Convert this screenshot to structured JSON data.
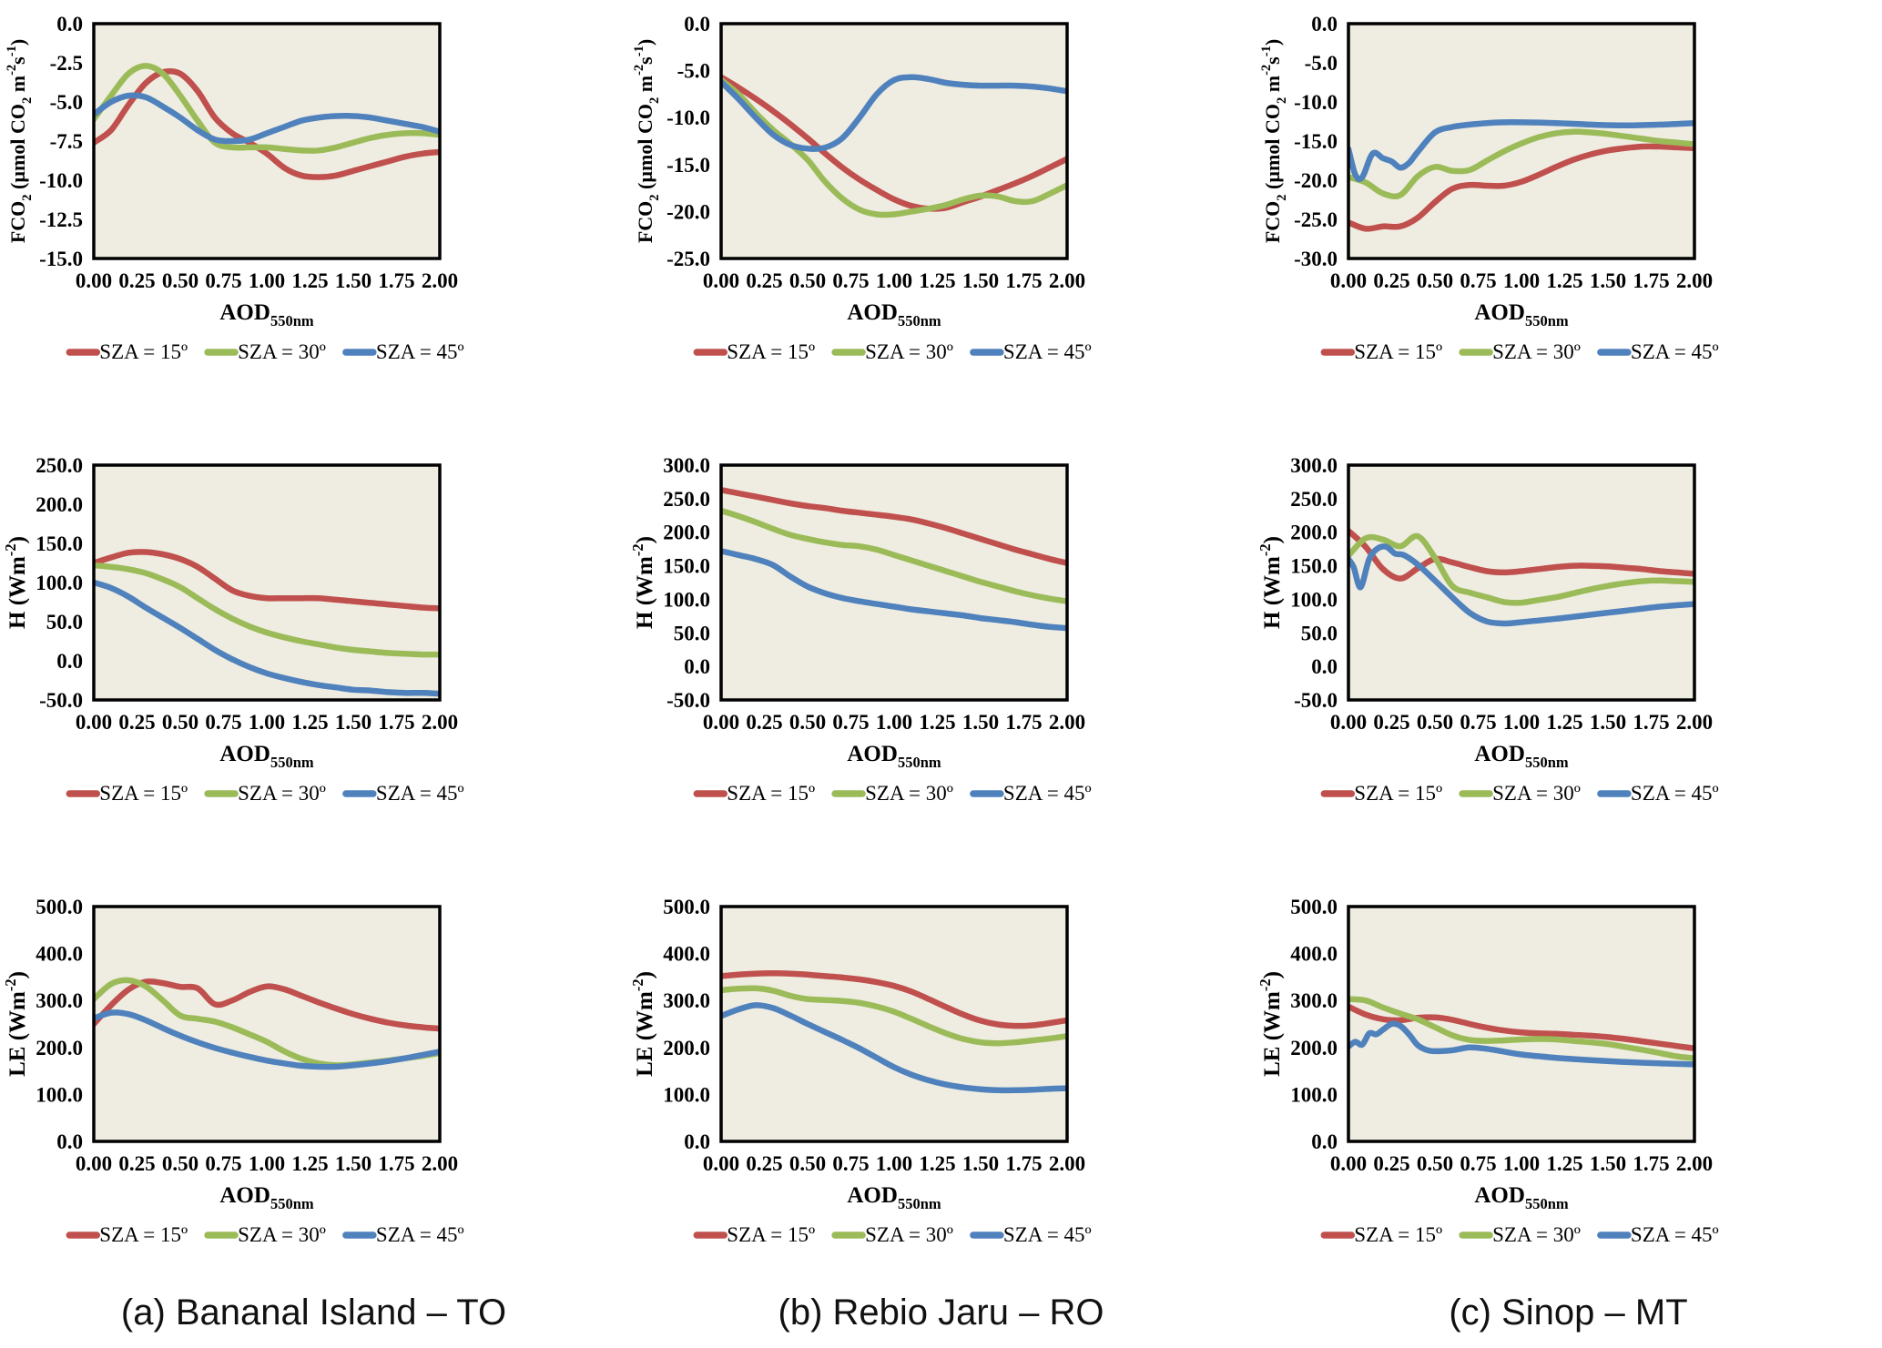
{
  "figure": {
    "background": "#ffffff",
    "plot_background": "#efede1",
    "axis_color": "#000000",
    "series_palette": {
      "sza15": "#c0504d",
      "sza30": "#9bbb59",
      "sza45": "#4f81bd"
    }
  },
  "legend": {
    "items": [
      {
        "label": "SZA = 15º",
        "color": "#c0504d"
      },
      {
        "label": "SZA = 30º",
        "color": "#9bbb59"
      },
      {
        "label": "SZA = 45º",
        "color": "#4f81bd"
      }
    ]
  },
  "captions": [
    "(a) Bananal Island – TO",
    "(b) Rebio Jaru – RO",
    "(c) Sinop – MT"
  ],
  "x_axis": {
    "title_segments": [
      [
        "AOD"
      ],
      [
        "550nm",
        "sub"
      ]
    ],
    "tick_labels": [
      "0.00",
      "0.25",
      "0.50",
      "0.75",
      "1.00",
      "1.25",
      "1.50",
      "1.75",
      "2.00"
    ],
    "range": [
      0,
      2
    ]
  },
  "x_values": [
    0,
    0.1,
    0.2,
    0.3,
    0.4,
    0.5,
    0.6,
    0.7,
    0.8,
    0.9,
    1.0,
    1.1,
    1.2,
    1.3,
    1.4,
    1.5,
    1.6,
    1.7,
    1.8,
    1.9,
    2.0
  ],
  "chart_data": [
    {
      "id": "fco2-bananal",
      "type": "line",
      "ylabel_segments": [
        [
          "FCO"
        ],
        [
          "2",
          "sub"
        ],
        [
          " (µmol CO"
        ],
        [
          "2",
          "sub"
        ],
        [
          " m"
        ],
        [
          "-2",
          "sup"
        ],
        [
          "s"
        ],
        [
          "-1",
          "sup"
        ],
        [
          ")"
        ]
      ],
      "ylim": [
        -15,
        0
      ],
      "ytick_step": 2.5,
      "grid": false,
      "legend_position": "bottom",
      "series": [
        {
          "name": "SZA = 15º",
          "color": "#c0504d",
          "values": [
            -7.6,
            -6.8,
            -5.2,
            -3.8,
            -3.1,
            -3.2,
            -4.3,
            -6.0,
            -7.0,
            -7.6,
            -8.3,
            -9.2,
            -9.7,
            -9.8,
            -9.7,
            -9.4,
            -9.1,
            -8.8,
            -8.5,
            -8.3,
            -8.2
          ]
        },
        {
          "name": "SZA = 30º",
          "color": "#9bbb59",
          "values": [
            -6.1,
            -4.6,
            -3.2,
            -2.7,
            -3.2,
            -4.6,
            -6.2,
            -7.6,
            -7.9,
            -7.9,
            -7.9,
            -8.0,
            -8.1,
            -8.1,
            -7.9,
            -7.6,
            -7.3,
            -7.1,
            -7.0,
            -7.0,
            -7.1
          ]
        },
        {
          "name": "SZA = 45º",
          "color": "#4f81bd",
          "values": [
            -5.8,
            -5.0,
            -4.6,
            -4.7,
            -5.3,
            -6.0,
            -6.8,
            -7.4,
            -7.5,
            -7.4,
            -7.0,
            -6.6,
            -6.2,
            -6.0,
            -5.9,
            -5.9,
            -6.0,
            -6.2,
            -6.4,
            -6.6,
            -6.9
          ]
        }
      ]
    },
    {
      "id": "fco2-rebio",
      "type": "line",
      "ylabel_segments": [
        [
          "FCO"
        ],
        [
          "2",
          "sub"
        ],
        [
          " (µmol CO"
        ],
        [
          "2",
          "sub"
        ],
        [
          " m"
        ],
        [
          "-2",
          "sup"
        ],
        [
          "s"
        ],
        [
          "-1",
          "sup"
        ],
        [
          ")"
        ]
      ],
      "ylim": [
        -25,
        0
      ],
      "ytick_step": 5,
      "grid": false,
      "legend_position": "bottom",
      "series": [
        {
          "name": "SZA = 15º",
          "color": "#c0504d",
          "values": [
            -5.7,
            -6.8,
            -8.0,
            -9.3,
            -10.7,
            -12.2,
            -13.8,
            -15.3,
            -16.6,
            -17.7,
            -18.7,
            -19.4,
            -19.7,
            -19.6,
            -19.0,
            -18.4,
            -17.7,
            -17.0,
            -16.2,
            -15.3,
            -14.4
          ]
        },
        {
          "name": "SZA = 30º",
          "color": "#9bbb59",
          "values": [
            -6.0,
            -7.5,
            -9.5,
            -11.3,
            -12.8,
            -14.5,
            -16.8,
            -18.6,
            -19.8,
            -20.3,
            -20.3,
            -20.0,
            -19.7,
            -19.3,
            -18.7,
            -18.3,
            -18.4,
            -18.9,
            -18.9,
            -18.1,
            -17.2
          ]
        },
        {
          "name": "SZA = 45º",
          "color": "#4f81bd",
          "values": [
            -6.2,
            -8.0,
            -10.0,
            -11.8,
            -12.9,
            -13.3,
            -13.2,
            -12.2,
            -10.0,
            -7.5,
            -6.0,
            -5.7,
            -5.9,
            -6.3,
            -6.5,
            -6.6,
            -6.6,
            -6.6,
            -6.7,
            -6.9,
            -7.2
          ]
        }
      ]
    },
    {
      "id": "fco2-sinop",
      "type": "line",
      "ylabel_segments": [
        [
          "FCO"
        ],
        [
          "2",
          "sub"
        ],
        [
          " (µmol CO"
        ],
        [
          "2",
          "sub"
        ],
        [
          " m"
        ],
        [
          "-2",
          "sup"
        ],
        [
          "s"
        ],
        [
          "-1",
          "sup"
        ],
        [
          ")"
        ]
      ],
      "ylim": [
        -30,
        0
      ],
      "ytick_step": 5,
      "grid": false,
      "legend_position": "bottom",
      "series": [
        {
          "name": "SZA = 15º",
          "color": "#c0504d",
          "values": [
            -25.4,
            -26.2,
            -25.9,
            -25.9,
            -24.8,
            -22.8,
            -21.1,
            -20.6,
            -20.7,
            -20.7,
            -20.2,
            -19.3,
            -18.3,
            -17.4,
            -16.7,
            -16.2,
            -15.9,
            -15.7,
            -15.7,
            -15.8,
            -15.9
          ]
        },
        {
          "name": "SZA = 30º",
          "color": "#9bbb59",
          "values": [
            -19.6,
            -20.3,
            -21.7,
            -21.9,
            -19.5,
            -18.3,
            -18.8,
            -18.7,
            -17.5,
            -16.3,
            -15.3,
            -14.5,
            -14.0,
            -13.8,
            -13.9,
            -14.1,
            -14.4,
            -14.7,
            -15.0,
            -15.2,
            -15.4
          ]
        },
        {
          "name": "SZA = 45º",
          "color": "#4f81bd",
          "x": [
            0,
            0.04,
            0.08,
            0.14,
            0.2,
            0.25,
            0.3,
            0.35,
            0.4,
            0.5,
            0.6,
            0.7,
            0.8,
            0.9,
            1.0,
            1.2,
            1.4,
            1.6,
            1.8,
            2.0
          ],
          "values": [
            -16.0,
            -19.3,
            -19.6,
            -16.6,
            -17.2,
            -17.6,
            -18.4,
            -17.8,
            -16.4,
            -13.9,
            -13.2,
            -12.9,
            -12.7,
            -12.6,
            -12.6,
            -12.7,
            -12.9,
            -13.0,
            -12.9,
            -12.7
          ]
        }
      ]
    },
    {
      "id": "h-bananal",
      "type": "line",
      "ylabel_segments": [
        [
          "H (Wm"
        ],
        [
          "-2",
          "sup"
        ],
        [
          ")"
        ]
      ],
      "ylim": [
        -50,
        250
      ],
      "ytick_step": 50,
      "grid": false,
      "legend_position": "bottom",
      "series": [
        {
          "name": "SZA = 15º",
          "color": "#c0504d",
          "values": [
            125,
            132,
            138,
            139,
            136,
            130,
            120,
            105,
            90,
            83,
            80,
            80,
            80,
            80,
            78,
            76,
            74,
            72,
            70,
            68,
            67
          ]
        },
        {
          "name": "SZA = 30º",
          "color": "#9bbb59",
          "values": [
            122,
            120,
            117,
            112,
            104,
            94,
            80,
            66,
            54,
            44,
            36,
            30,
            25,
            21,
            17,
            14,
            12,
            10,
            9,
            8,
            8
          ]
        },
        {
          "name": "SZA = 45º",
          "color": "#4f81bd",
          "values": [
            100,
            93,
            82,
            68,
            55,
            42,
            28,
            14,
            2,
            -8,
            -16,
            -22,
            -27,
            -31,
            -34,
            -37,
            -38,
            -40,
            -41,
            -41,
            -42
          ]
        }
      ]
    },
    {
      "id": "h-rebio",
      "type": "line",
      "ylabel_segments": [
        [
          "H (Wm"
        ],
        [
          "-2",
          "sup"
        ],
        [
          ")"
        ]
      ],
      "ylim": [
        -50,
        300
      ],
      "ytick_step": 50,
      "grid": false,
      "legend_position": "bottom",
      "series": [
        {
          "name": "SZA = 15º",
          "color": "#c0504d",
          "values": [
            263,
            258,
            253,
            248,
            243,
            239,
            236,
            232,
            229,
            226,
            223,
            219,
            213,
            206,
            198,
            190,
            182,
            174,
            167,
            160,
            154
          ]
        },
        {
          "name": "SZA = 30º",
          "color": "#9bbb59",
          "values": [
            232,
            224,
            215,
            205,
            196,
            190,
            185,
            181,
            179,
            174,
            166,
            158,
            150,
            142,
            134,
            126,
            119,
            112,
            106,
            101,
            97
          ]
        },
        {
          "name": "SZA = 45º",
          "color": "#4f81bd",
          "values": [
            172,
            166,
            160,
            151,
            134,
            119,
            109,
            102,
            97,
            93,
            89,
            85,
            82,
            79,
            76,
            72,
            69,
            66,
            62,
            59,
            57
          ]
        }
      ]
    },
    {
      "id": "h-sinop",
      "type": "line",
      "ylabel_segments": [
        [
          "H (Wm"
        ],
        [
          "-2",
          "sup"
        ],
        [
          ")"
        ]
      ],
      "ylim": [
        -50,
        300
      ],
      "ytick_step": 50,
      "grid": false,
      "legend_position": "bottom",
      "series": [
        {
          "name": "SZA = 15º",
          "color": "#c0504d",
          "values": [
            202,
            178,
            145,
            131,
            146,
            160,
            155,
            148,
            142,
            140,
            142,
            145,
            148,
            150,
            150,
            149,
            147,
            145,
            142,
            140,
            138
          ]
        },
        {
          "name": "SZA = 30º",
          "color": "#9bbb59",
          "values": [
            165,
            191,
            189,
            179,
            194,
            162,
            120,
            110,
            103,
            96,
            95,
            99,
            103,
            109,
            115,
            120,
            124,
            127,
            128,
            127,
            126
          ]
        },
        {
          "name": "SZA = 45º",
          "color": "#4f81bd",
          "x": [
            0,
            0.03,
            0.07,
            0.12,
            0.17,
            0.22,
            0.27,
            0.32,
            0.4,
            0.5,
            0.6,
            0.7,
            0.8,
            0.9,
            1.0,
            1.2,
            1.4,
            1.6,
            1.8,
            2.0
          ],
          "values": [
            160,
            148,
            118,
            160,
            176,
            178,
            168,
            166,
            152,
            128,
            103,
            80,
            67,
            64,
            66,
            71,
            77,
            83,
            89,
            93
          ]
        }
      ]
    },
    {
      "id": "le-bananal",
      "type": "line",
      "ylabel_segments": [
        [
          "LE (Wm"
        ],
        [
          "-2",
          "sup"
        ],
        [
          ")"
        ]
      ],
      "ylim": [
        0,
        500
      ],
      "ytick_step": 100,
      "grid": false,
      "legend_position": "bottom",
      "series": [
        {
          "name": "SZA = 15º",
          "color": "#c0504d",
          "values": [
            250,
            290,
            323,
            340,
            337,
            329,
            326,
            292,
            300,
            318,
            330,
            324,
            310,
            296,
            283,
            271,
            261,
            253,
            247,
            243,
            240
          ]
        },
        {
          "name": "SZA = 30º",
          "color": "#9bbb59",
          "values": [
            303,
            335,
            343,
            330,
            300,
            268,
            261,
            255,
            243,
            228,
            212,
            192,
            176,
            166,
            162,
            164,
            168,
            172,
            177,
            182,
            188
          ]
        },
        {
          "name": "SZA = 45º",
          "color": "#4f81bd",
          "values": [
            262,
            274,
            271,
            258,
            241,
            225,
            211,
            199,
            189,
            180,
            172,
            166,
            161,
            159,
            159,
            162,
            166,
            171,
            177,
            184,
            191
          ]
        }
      ]
    },
    {
      "id": "le-rebio",
      "type": "line",
      "ylabel_segments": [
        [
          "LE (Wm"
        ],
        [
          "-2",
          "sup"
        ],
        [
          ")"
        ]
      ],
      "ylim": [
        0,
        500
      ],
      "ytick_step": 100,
      "grid": false,
      "legend_position": "bottom",
      "series": [
        {
          "name": "SZA = 15º",
          "color": "#c0504d",
          "values": [
            352,
            355,
            357,
            358,
            357,
            355,
            352,
            349,
            345,
            339,
            331,
            319,
            303,
            286,
            270,
            257,
            249,
            246,
            247,
            252,
            258
          ]
        },
        {
          "name": "SZA = 30º",
          "color": "#9bbb59",
          "values": [
            322,
            325,
            326,
            321,
            310,
            303,
            301,
            299,
            295,
            287,
            276,
            261,
            245,
            230,
            218,
            211,
            209,
            211,
            215,
            219,
            224
          ]
        },
        {
          "name": "SZA = 45º",
          "color": "#4f81bd",
          "values": [
            267,
            281,
            290,
            284,
            268,
            250,
            233,
            216,
            198,
            178,
            158,
            142,
            130,
            121,
            115,
            111,
            109,
            109,
            110,
            112,
            113
          ]
        }
      ]
    },
    {
      "id": "le-sinop",
      "type": "line",
      "ylabel_segments": [
        [
          "LE (Wm"
        ],
        [
          "-2",
          "sup"
        ],
        [
          ")"
        ]
      ],
      "ylim": [
        0,
        500
      ],
      "ytick_step": 100,
      "grid": false,
      "legend_position": "bottom",
      "series": [
        {
          "name": "SZA = 15º",
          "color": "#c0504d",
          "values": [
            287,
            270,
            260,
            258,
            263,
            264,
            259,
            250,
            242,
            236,
            232,
            230,
            229,
            227,
            225,
            222,
            218,
            213,
            208,
            203,
            198
          ]
        },
        {
          "name": "SZA = 30º",
          "color": "#9bbb59",
          "values": [
            303,
            300,
            285,
            272,
            260,
            243,
            226,
            216,
            214,
            215,
            217,
            218,
            217,
            214,
            211,
            207,
            201,
            195,
            188,
            181,
            177
          ]
        },
        {
          "name": "SZA = 45º",
          "color": "#4f81bd",
          "x": [
            0,
            0.04,
            0.08,
            0.12,
            0.16,
            0.2,
            0.25,
            0.3,
            0.35,
            0.4,
            0.45,
            0.5,
            0.6,
            0.7,
            0.8,
            0.9,
            1.0,
            1.2,
            1.4,
            1.6,
            1.8,
            2.0
          ],
          "values": [
            202,
            212,
            206,
            230,
            228,
            238,
            250,
            246,
            228,
            205,
            195,
            192,
            194,
            200,
            197,
            191,
            185,
            178,
            173,
            169,
            166,
            164
          ]
        }
      ]
    }
  ]
}
